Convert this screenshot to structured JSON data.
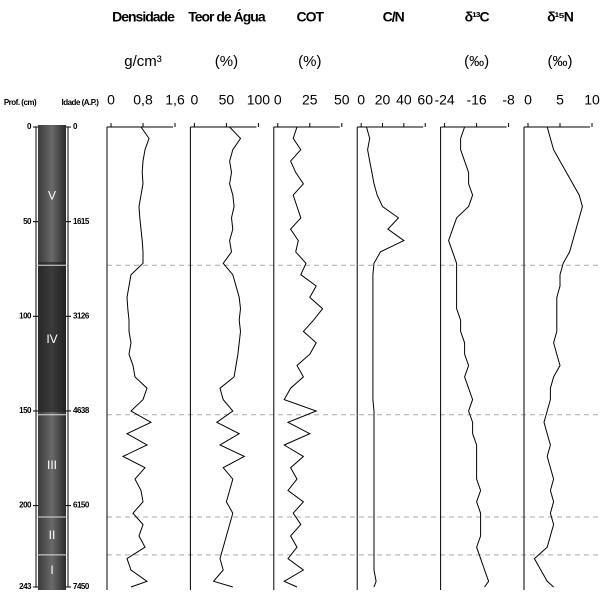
{
  "depth_axis": {
    "label": "Prof. (cm)",
    "lim": [
      0,
      243
    ],
    "ticks": [
      0,
      50,
      100,
      150,
      200,
      243
    ]
  },
  "age_axis": {
    "label": "Idade (A.P.)",
    "ticks": [
      0,
      1615,
      3126,
      4638,
      6150,
      7450
    ]
  },
  "core": {
    "units": [
      "V",
      "IV",
      "III",
      "II",
      "I"
    ],
    "boundaries": [
      73,
      152,
      206,
      226
    ]
  },
  "chart_data": [
    {
      "type": "line",
      "title": "Densidade",
      "unit": "g/cm³",
      "color": "#000000",
      "xlim": [
        0,
        1.6
      ],
      "xticks": [
        0,
        {
          "value": 0.8,
          "label": "0,8"
        },
        {
          "value": 1.6,
          "label": "1,6"
        }
      ],
      "ylim": [
        0,
        243
      ],
      "y": [
        0,
        6,
        12,
        18,
        24,
        30,
        36,
        42,
        48,
        54,
        60,
        66,
        72,
        78,
        84,
        90,
        96,
        102,
        108,
        114,
        120,
        126,
        132,
        138,
        144,
        150,
        156,
        162,
        168,
        174,
        180,
        186,
        192,
        198,
        204,
        210,
        216,
        222,
        228,
        234,
        240,
        243
      ],
      "values": [
        0.75,
        0.95,
        0.85,
        0.8,
        0.78,
        0.8,
        0.75,
        0.7,
        0.72,
        0.75,
        0.78,
        0.8,
        0.8,
        0.5,
        0.45,
        0.4,
        0.42,
        0.45,
        0.45,
        0.5,
        0.45,
        0.55,
        0.6,
        0.9,
        0.8,
        0.5,
        1.0,
        0.4,
        0.9,
        0.3,
        0.85,
        0.6,
        0.75,
        0.8,
        0.55,
        0.8,
        0.7,
        0.85,
        0.4,
        0.5,
        0.9,
        0.5
      ]
    },
    {
      "type": "line",
      "title": "Teor de Água",
      "unit": "(%)",
      "color": "#000000",
      "xlim": [
        0,
        100
      ],
      "xticks": [
        0,
        50,
        100
      ],
      "ylim": [
        0,
        243
      ],
      "y": [
        0,
        6,
        12,
        18,
        24,
        30,
        36,
        42,
        48,
        54,
        60,
        66,
        72,
        78,
        84,
        90,
        96,
        102,
        108,
        114,
        120,
        126,
        132,
        138,
        144,
        150,
        156,
        162,
        168,
        174,
        180,
        186,
        192,
        198,
        204,
        210,
        216,
        222,
        228,
        234,
        240,
        243
      ],
      "values": [
        55,
        72,
        60,
        55,
        58,
        55,
        60,
        62,
        58,
        60,
        55,
        58,
        45,
        60,
        65,
        70,
        72,
        70,
        72,
        70,
        68,
        65,
        62,
        40,
        45,
        60,
        35,
        70,
        40,
        78,
        45,
        60,
        55,
        50,
        60,
        55,
        50,
        45,
        40,
        45,
        30,
        60
      ]
    },
    {
      "type": "line",
      "title": "COT",
      "unit": "(%)",
      "color": "#000000",
      "xlim": [
        0,
        50
      ],
      "xticks": [
        0,
        25,
        50
      ],
      "ylim": [
        0,
        243
      ],
      "y": [
        0,
        6,
        12,
        18,
        24,
        30,
        36,
        42,
        48,
        54,
        60,
        66,
        72,
        78,
        84,
        90,
        96,
        102,
        108,
        114,
        120,
        126,
        132,
        138,
        144,
        150,
        156,
        162,
        168,
        174,
        180,
        186,
        192,
        198,
        204,
        210,
        216,
        222,
        228,
        234,
        240,
        243
      ],
      "values": [
        15,
        12,
        18,
        10,
        14,
        20,
        12,
        15,
        18,
        10,
        16,
        14,
        22,
        18,
        30,
        25,
        35,
        28,
        20,
        30,
        25,
        15,
        20,
        10,
        5,
        30,
        8,
        25,
        5,
        20,
        10,
        15,
        8,
        20,
        12,
        18,
        10,
        15,
        8,
        20,
        5,
        15
      ]
    },
    {
      "type": "line",
      "title": "C/N",
      "color": "#000000",
      "xlim": [
        0,
        60
      ],
      "xticks": [
        0,
        20,
        40,
        60
      ],
      "ylim": [
        0,
        243
      ],
      "y": [
        0,
        6,
        12,
        18,
        24,
        30,
        36,
        42,
        48,
        54,
        60,
        66,
        72,
        78,
        84,
        90,
        96,
        102,
        108,
        114,
        120,
        126,
        132,
        138,
        144,
        150,
        156,
        162,
        168,
        174,
        180,
        186,
        192,
        198,
        204,
        210,
        216,
        222,
        228,
        234,
        240,
        243
      ],
      "values": [
        5,
        8,
        6,
        8,
        10,
        12,
        15,
        20,
        35,
        25,
        40,
        18,
        12,
        11,
        11,
        11,
        11,
        11,
        11,
        11,
        11,
        11,
        11,
        11,
        11,
        12,
        12,
        12,
        12,
        12,
        12,
        12,
        12,
        12,
        12,
        12,
        12,
        12,
        12,
        12,
        14,
        12
      ]
    },
    {
      "type": "line",
      "title": "δ¹³C",
      "unit": "(‰)",
      "color": "#000000",
      "xlim": [
        -24,
        -8
      ],
      "xticks": [
        -24,
        -16,
        -8
      ],
      "ylim": [
        0,
        243
      ],
      "y": [
        0,
        6,
        12,
        18,
        24,
        30,
        36,
        42,
        48,
        54,
        60,
        66,
        72,
        78,
        84,
        90,
        96,
        102,
        108,
        114,
        120,
        126,
        132,
        138,
        144,
        150,
        156,
        162,
        168,
        174,
        180,
        186,
        192,
        198,
        204,
        210,
        216,
        222,
        228,
        234,
        240,
        243
      ],
      "values": [
        -19,
        -20,
        -20,
        -19,
        -18,
        -18,
        -17,
        -18,
        -21,
        -22,
        -23,
        -22,
        -21,
        -21,
        -21,
        -21,
        -21,
        -20,
        -20,
        -19,
        -19,
        -18,
        -19,
        -18,
        -17,
        -18,
        -17,
        -17,
        -16,
        -16,
        -16,
        -16,
        -15,
        -16,
        -15,
        -15,
        -15,
        -16,
        -15,
        -14,
        -13,
        -14
      ]
    },
    {
      "type": "line",
      "title": "δ¹⁵N",
      "unit": "(‰)",
      "color": "#000000",
      "xlim": [
        0,
        10
      ],
      "xticks": [
        0,
        5,
        10
      ],
      "ylim": [
        0,
        243
      ],
      "y": [
        0,
        6,
        12,
        18,
        24,
        30,
        36,
        42,
        48,
        54,
        60,
        66,
        72,
        78,
        84,
        90,
        96,
        102,
        108,
        114,
        120,
        126,
        132,
        138,
        144,
        150,
        156,
        162,
        168,
        174,
        180,
        186,
        192,
        198,
        204,
        210,
        216,
        222,
        228,
        234,
        240,
        243
      ],
      "values": [
        3,
        3.5,
        4,
        5,
        6,
        7,
        8,
        8.5,
        8,
        7.5,
        7,
        6.5,
        5.5,
        5,
        5,
        4.5,
        4.5,
        4.5,
        4.5,
        4,
        4.5,
        5,
        4,
        3.5,
        3.5,
        3,
        2.5,
        3,
        3.5,
        3,
        3.5,
        4,
        3.5,
        4,
        3.5,
        4,
        3.5,
        3,
        1,
        2,
        3,
        4
      ]
    }
  ]
}
